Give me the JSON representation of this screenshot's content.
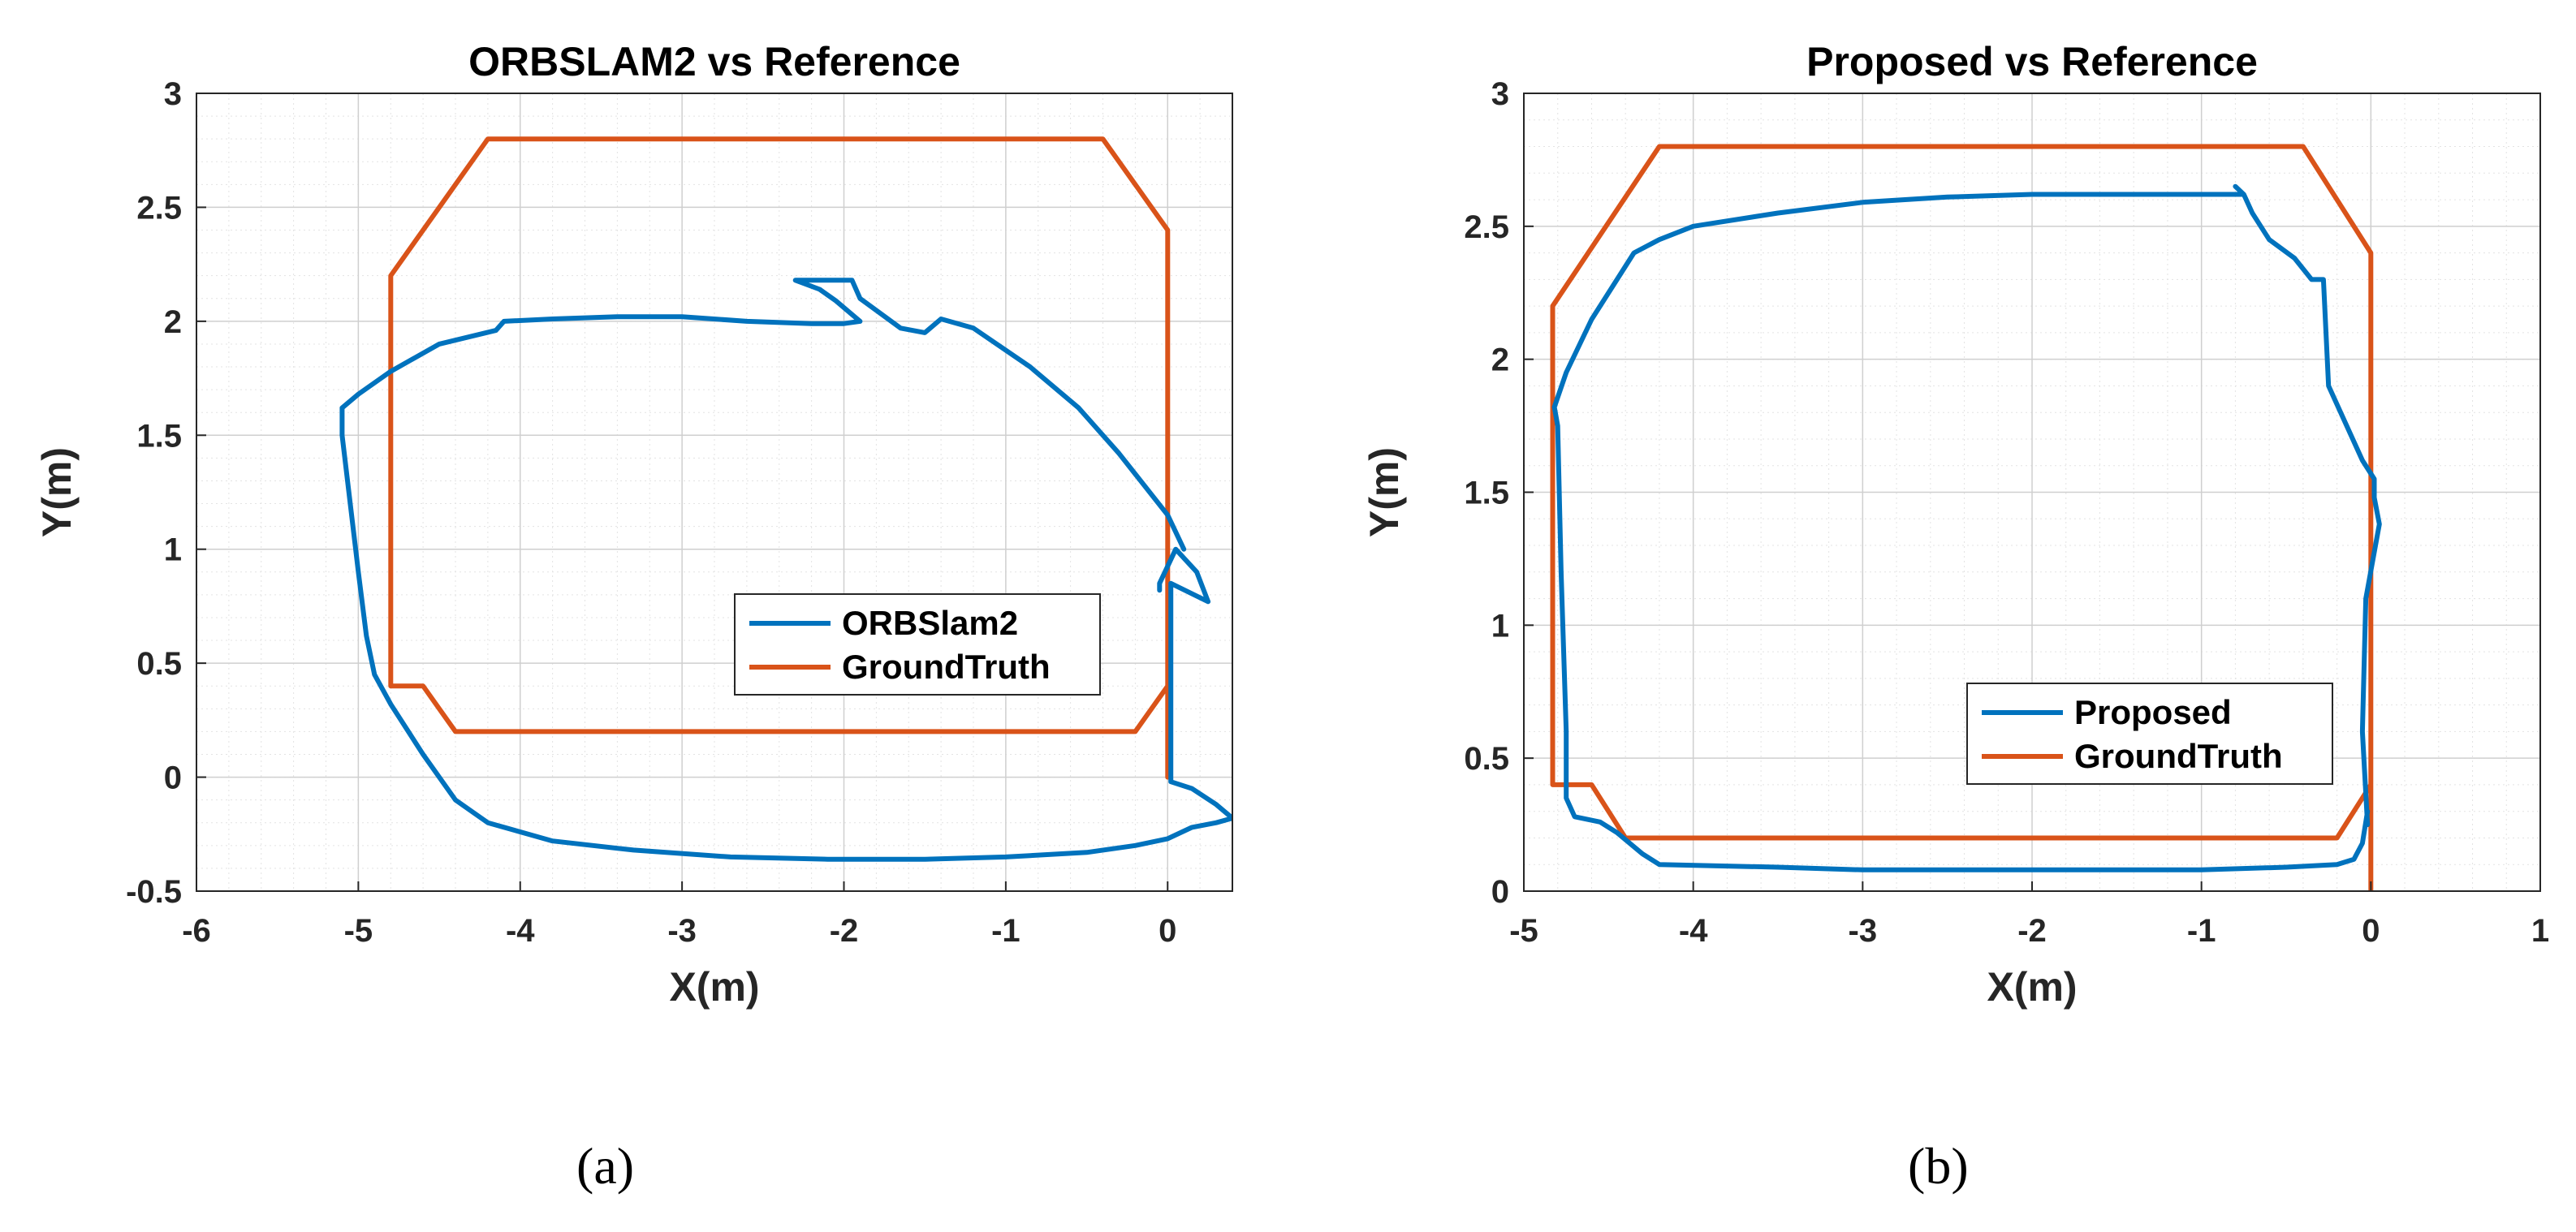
{
  "chart_data": [
    {
      "type": "line",
      "title": "ORBSLAM2 vs Reference",
      "xlabel": "X(m)",
      "ylabel": "Y(m)",
      "xlim": [
        -6,
        0.4
      ],
      "ylim": [
        -0.5,
        3
      ],
      "xticks": [
        -6,
        -5,
        -4,
        -3,
        -2,
        -1,
        0
      ],
      "yticks": [
        -0.5,
        0,
        0.5,
        1,
        1.5,
        2,
        2.5,
        3
      ],
      "xtick_labels": [
        "-6",
        "-5",
        "-4",
        "-3",
        "-2",
        "-1",
        "0"
      ],
      "ytick_labels": [
        "-0.5",
        "0",
        "0.5",
        "1",
        "1.5",
        "2",
        "2.5",
        "3"
      ],
      "grid": true,
      "legend_position": "center-right",
      "colors": {
        "estimate": "#0072BD",
        "truth": "#D95319"
      },
      "series": [
        {
          "name": "ORBSlam2",
          "color": "#0072BD",
          "x": [
            0.1,
            0.0,
            -0.3,
            -0.55,
            -0.85,
            -1.2,
            -1.4,
            -1.5,
            -1.65,
            -1.9,
            -1.95,
            -2.3,
            -2.15,
            -2.05,
            -1.9,
            -2.0,
            -2.2,
            -2.6,
            -3.0,
            -3.4,
            -3.8,
            -4.1,
            -4.15,
            -4.5,
            -4.8,
            -5.0,
            -5.1,
            -5.1,
            -5.1,
            -5.05,
            -5.0,
            -4.95,
            -4.9,
            -4.8,
            -4.6,
            -4.4,
            -4.2,
            -3.8,
            -3.3,
            -2.7,
            -2.1,
            -1.5,
            -1.0,
            -0.5,
            -0.2,
            0.0,
            0.15,
            0.3,
            0.4,
            0.3,
            0.15,
            0.02,
            0.02,
            0.02,
            0.25,
            0.18,
            0.05,
            -0.05,
            -0.05
          ],
          "y": [
            1.0,
            1.15,
            1.42,
            1.62,
            1.8,
            1.97,
            2.01,
            1.95,
            1.97,
            2.1,
            2.18,
            2.18,
            2.14,
            2.09,
            2.0,
            1.99,
            1.99,
            2.0,
            2.02,
            2.02,
            2.01,
            2.0,
            1.96,
            1.9,
            1.78,
            1.68,
            1.62,
            1.6,
            1.5,
            1.2,
            0.9,
            0.62,
            0.45,
            0.32,
            0.1,
            -0.1,
            -0.2,
            -0.28,
            -0.32,
            -0.35,
            -0.36,
            -0.36,
            -0.35,
            -0.33,
            -0.3,
            -0.27,
            -0.22,
            -0.2,
            -0.18,
            -0.12,
            -0.05,
            -0.02,
            0.5,
            0.85,
            0.77,
            0.9,
            1.0,
            0.85,
            0.82
          ]
        },
        {
          "name": "GroundTruth",
          "color": "#D95319",
          "x": [
            0.0,
            0.0,
            -0.2,
            -4.4,
            -4.6,
            -4.8,
            -4.8,
            -4.2,
            -0.4,
            0.0,
            0.0
          ],
          "y": [
            0.0,
            0.4,
            0.2,
            0.2,
            0.4,
            0.4,
            2.2,
            2.8,
            2.8,
            2.4,
            0.4
          ]
        }
      ]
    },
    {
      "type": "line",
      "title": "Proposed vs Reference",
      "xlabel": "X(m)",
      "ylabel": "Y(m)",
      "xlim": [
        -5,
        1
      ],
      "ylim": [
        0,
        3
      ],
      "xticks": [
        -5,
        -4,
        -3,
        -2,
        -1,
        0,
        1
      ],
      "yticks": [
        0,
        0.5,
        1,
        1.5,
        2,
        2.5,
        3
      ],
      "xtick_labels": [
        "-5",
        "-4",
        "-3",
        "-2",
        "-1",
        "0",
        "1"
      ],
      "ytick_labels": [
        "0",
        "0.5",
        "1",
        "1.5",
        "2",
        "2.5",
        "3"
      ],
      "grid": true,
      "legend_position": "bottom-right",
      "colors": {
        "estimate": "#0072BD",
        "truth": "#D95319"
      },
      "series": [
        {
          "name": "Proposed",
          "color": "#0072BD",
          "x": [
            -0.02,
            -0.05,
            -0.03,
            0.05,
            0.02,
            0.02,
            -0.05,
            -0.25,
            -0.28,
            -0.35,
            -0.45,
            -0.6,
            -0.7,
            -0.75,
            -0.8,
            -0.75,
            -1.0,
            -1.5,
            -2.0,
            -2.5,
            -3.0,
            -3.5,
            -4.0,
            -4.2,
            -4.35,
            -4.4,
            -4.6,
            -4.75,
            -4.82,
            -4.8,
            -4.78,
            -4.75,
            -4.75,
            -4.7,
            -4.55,
            -4.45,
            -4.3,
            -4.2,
            -3.5,
            -3.0,
            -2.5,
            -2.0,
            -1.5,
            -1.0,
            -0.5,
            -0.2,
            -0.1,
            -0.05,
            -0.02
          ],
          "y": [
            0.25,
            0.6,
            1.1,
            1.38,
            1.48,
            1.55,
            1.62,
            1.9,
            2.3,
            2.3,
            2.38,
            2.45,
            2.55,
            2.62,
            2.65,
            2.62,
            2.62,
            2.62,
            2.62,
            2.61,
            2.59,
            2.55,
            2.5,
            2.45,
            2.4,
            2.35,
            2.15,
            1.95,
            1.82,
            1.75,
            1.2,
            0.6,
            0.35,
            0.28,
            0.26,
            0.22,
            0.14,
            0.1,
            0.09,
            0.08,
            0.08,
            0.08,
            0.08,
            0.08,
            0.09,
            0.1,
            0.12,
            0.18,
            0.3
          ]
        },
        {
          "name": "GroundTruth",
          "color": "#D95319",
          "x": [
            0.0,
            0.0,
            -0.2,
            -4.4,
            -4.6,
            -4.83,
            -4.83,
            -4.2,
            -0.4,
            0.0,
            0.0
          ],
          "y": [
            0.0,
            0.4,
            0.2,
            0.2,
            0.4,
            0.4,
            2.2,
            2.8,
            2.8,
            2.4,
            0.4
          ]
        }
      ]
    }
  ],
  "panel_labels": [
    "(a)",
    "(b)"
  ]
}
